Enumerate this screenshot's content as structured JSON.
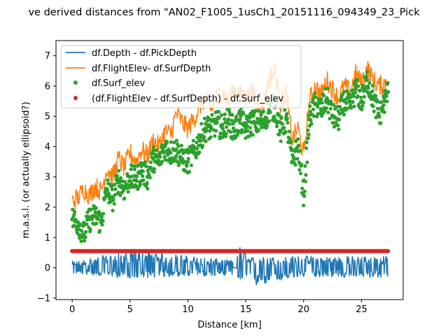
{
  "chart_data": {
    "type": "line",
    "title": "ve derived distances from \"AN02_F1005_1usCh1_20151116_094349_23_Pick",
    "xlabel": "Distance [km]",
    "ylabel": "m.a.s.l. (or actually ellipsoid?)",
    "xlim": [
      -1.4,
      28.6
    ],
    "ylim": [
      -1.05,
      7.5
    ],
    "xticks": [
      0,
      5,
      10,
      15,
      20,
      25
    ],
    "yticks": [
      -1,
      0,
      1,
      2,
      3,
      4,
      5,
      6,
      7
    ],
    "grid": false,
    "legend_position": "upper-left",
    "colors": {
      "depth": "#1f77b4",
      "flight": "#ff7f0e",
      "surf": "#2ca02c",
      "diff": "#d62728"
    },
    "series": [
      {
        "name": "df.Depth - df.PickDepth",
        "style": "line",
        "color": "#1f77b4",
        "x": [
          0,
          2,
          4,
          5.3,
          6,
          8,
          10,
          12,
          13.9,
          14.3,
          14.4,
          15,
          15.4,
          16,
          18,
          20,
          22,
          24,
          26,
          27.3
        ],
        "y": [
          0.0,
          0.0,
          0.0,
          0.0,
          0.0,
          0.0,
          0.0,
          0.0,
          0.0,
          0.0,
          0.0,
          0.0,
          0.0,
          0.0,
          0.0,
          0.0,
          0.0,
          0.0,
          0.0,
          0.0
        ],
        "envelope": [
          [
            0,
            -0.2,
            0.2
          ],
          [
            5.3,
            -0.35,
            0.6
          ],
          [
            13.9,
            -0.25,
            0.25
          ],
          [
            14.4,
            -0.5,
            0.8
          ],
          [
            15.4,
            -0.65,
            0.35
          ],
          [
            20,
            -0.3,
            0.4
          ],
          [
            27.3,
            -0.35,
            0.4
          ]
        ]
      },
      {
        "name": "df.FlightElev- df.SurfDepth",
        "style": "line",
        "color": "#ff7f0e",
        "x": [
          0,
          0.5,
          1.0,
          1.5,
          2,
          2.5,
          3,
          3.5,
          4,
          4.5,
          5,
          5.5,
          6,
          6.5,
          7,
          7.5,
          8,
          8.5,
          9,
          9.5,
          10,
          10.5,
          11,
          11.5,
          12,
          12.5,
          13,
          13.5,
          14,
          14.5,
          15,
          15.5,
          16,
          16.5,
          17,
          17.5,
          18,
          18.5,
          19,
          19.5,
          20,
          20.5,
          21,
          21.5,
          22,
          22.5,
          23,
          23.5,
          24,
          24.5,
          25,
          25.5,
          26,
          26.5,
          27,
          27.3
        ],
        "y": [
          2.2,
          2.3,
          2.6,
          2.4,
          2.7,
          2.5,
          3.3,
          3.0,
          3.6,
          3.3,
          3.8,
          3.5,
          3.9,
          3.7,
          4.2,
          4.0,
          4.5,
          4.4,
          5.1,
          4.8,
          4.6,
          4.9,
          5.3,
          5.6,
          5.2,
          5.7,
          5.8,
          5.5,
          5.9,
          5.7,
          5.6,
          5.8,
          5.5,
          5.3,
          6.2,
          6.5,
          5.4,
          5.8,
          4.2,
          4.6,
          3.7,
          5.5,
          6.0,
          5.7,
          6.2,
          5.9,
          5.6,
          6.0,
          5.8,
          6.4,
          6.1,
          6.6,
          6.2,
          6.0,
          6.1,
          6.4
        ]
      },
      {
        "name": "df.Surf_elev",
        "style": "points",
        "color": "#2ca02c",
        "x": [
          0,
          0.5,
          1.0,
          1.5,
          2,
          2.5,
          3,
          3.5,
          4,
          4.5,
          5,
          5.5,
          6,
          6.5,
          7,
          7.5,
          8,
          8.5,
          9,
          9.5,
          10,
          10.5,
          11,
          11.5,
          12,
          12.5,
          13,
          13.5,
          14,
          14.5,
          15,
          15.5,
          16,
          16.5,
          17,
          17.5,
          18,
          18.5,
          19,
          19.5,
          20,
          20.5,
          21,
          21.5,
          22,
          22.5,
          23,
          23.5,
          24,
          24.5,
          25,
          25.5,
          26,
          26.5,
          27,
          27.3
        ],
        "y": [
          1.6,
          1.5,
          1.1,
          1.6,
          1.7,
          1.5,
          2.6,
          2.3,
          2.9,
          2.6,
          3.0,
          2.9,
          3.2,
          3.0,
          3.6,
          3.5,
          4.0,
          3.8,
          3.9,
          3.6,
          3.5,
          3.8,
          4.2,
          4.6,
          4.6,
          4.8,
          4.6,
          4.9,
          4.5,
          4.9,
          4.6,
          4.8,
          4.8,
          4.8,
          5.2,
          5.3,
          4.5,
          4.9,
          3.5,
          4.0,
          2.4,
          4.9,
          5.4,
          5.2,
          5.6,
          5.0,
          4.9,
          5.5,
          5.3,
          5.9,
          5.5,
          6.2,
          5.6,
          5.0,
          5.5,
          5.8
        ]
      },
      {
        "name": "(df.FlightElev - df.SurfDepth) - df.Surf_elev",
        "style": "points",
        "color": "#d62728",
        "x": [
          0,
          27.3
        ],
        "y": [
          0.55,
          0.55
        ]
      }
    ]
  }
}
